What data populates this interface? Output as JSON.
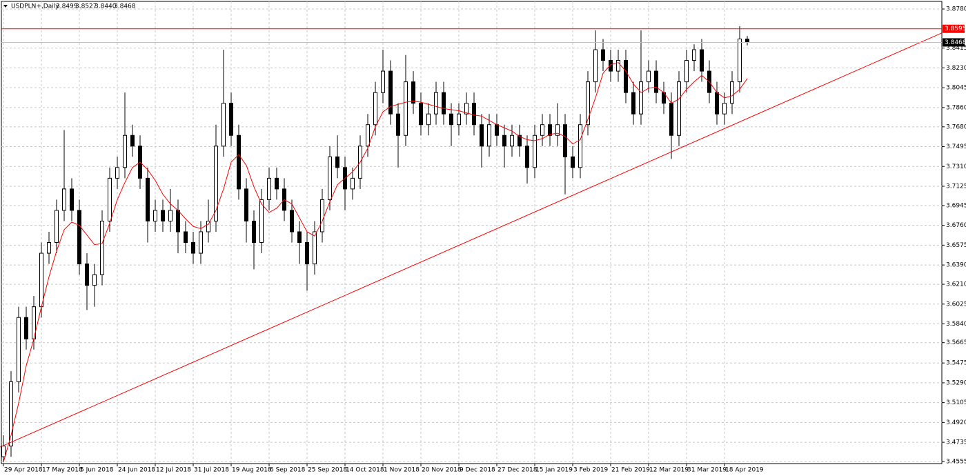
{
  "chart_data": {
    "type": "candlestick",
    "title": "USDPLN+,Daily",
    "last_bar_labels": [
      "3.8499",
      "3.8527",
      "3.8440",
      "3.8468"
    ],
    "up_color": "#ffffff",
    "down_color": "#000000",
    "wick_color": "#000000",
    "grid": true,
    "ylim": [
      3.4536,
      3.8851
    ],
    "yticks": [
      {
        "value": 3.878,
        "label": "3.8780"
      },
      3.8415,
      {
        "value": 3.823,
        "label": "3.8230"
      },
      3.8045,
      {
        "value": 3.786,
        "label": "3.7860"
      },
      {
        "value": 3.768,
        "label": "3.7680"
      },
      3.7495,
      {
        "value": 3.731,
        "label": "3.7310"
      },
      3.7125,
      3.6945,
      {
        "value": 3.676,
        "label": "3.6760"
      },
      3.6575,
      {
        "value": 3.639,
        "label": "3.6390"
      },
      {
        "value": 3.621,
        "label": "3.6210"
      },
      3.6025,
      {
        "value": 3.584,
        "label": "3.5840"
      },
      3.5665,
      3.5475,
      {
        "value": 3.529,
        "label": "3.5290"
      },
      3.5105,
      {
        "value": 3.492,
        "label": "3.4920"
      },
      3.4735,
      3.4555
    ],
    "categories": [
      "29 Apr 2018",
      null,
      null,
      null,
      null,
      "17 May 2018",
      null,
      null,
      null,
      null,
      "5 Jun 2018",
      null,
      null,
      null,
      null,
      "24 Jun 2018",
      null,
      null,
      null,
      null,
      "12 Jul 2018",
      null,
      null,
      null,
      null,
      "31 Jul 2018",
      null,
      null,
      null,
      null,
      "19 Aug 2018",
      null,
      null,
      null,
      null,
      "6 Sep 2018",
      null,
      null,
      null,
      null,
      "25 Sep 2018",
      null,
      null,
      null,
      null,
      "14 Oct 2018",
      null,
      null,
      null,
      null,
      "1 Nov 2018",
      null,
      null,
      null,
      null,
      "20 Nov 2018",
      null,
      null,
      null,
      null,
      "9 Dec 2018",
      null,
      null,
      null,
      null,
      "27 Dec 2018",
      null,
      null,
      null,
      null,
      "15 Jan 2019",
      null,
      null,
      null,
      null,
      "3 Feb 2019",
      null,
      null,
      null,
      null,
      "21 Feb 2019",
      null,
      null,
      null,
      null,
      "12 Mar 2019",
      null,
      null,
      null,
      null,
      "31 Mar 2019",
      null,
      null,
      null,
      null,
      "18 Apr 2019",
      null,
      null,
      null
    ],
    "open": [
      3.46,
      3.47,
      3.53,
      3.59,
      3.57,
      3.6,
      3.65,
      3.66,
      3.69,
      3.71,
      3.69,
      3.64,
      3.62,
      3.63,
      3.68,
      3.72,
      3.73,
      3.76,
      3.75,
      3.72,
      3.68,
      3.69,
      3.68,
      3.69,
      3.67,
      3.66,
      3.65,
      3.67,
      3.68,
      3.75,
      3.79,
      3.76,
      3.71,
      3.68,
      3.66,
      3.7,
      3.72,
      3.71,
      3.69,
      3.67,
      3.66,
      3.64,
      3.67,
      3.7,
      3.74,
      3.73,
      3.71,
      3.72,
      3.75,
      3.77,
      3.8,
      3.82,
      3.78,
      3.76,
      3.81,
      3.79,
      3.77,
      3.78,
      3.8,
      3.78,
      3.77,
      3.78,
      3.79,
      3.77,
      3.75,
      3.77,
      3.76,
      3.75,
      3.76,
      3.75,
      3.73,
      3.76,
      3.77,
      3.76,
      3.77,
      3.74,
      3.73,
      3.77,
      3.81,
      3.84,
      3.83,
      3.82,
      3.83,
      3.8,
      3.78,
      3.81,
      3.82,
      3.8,
      3.79,
      3.76,
      3.81,
      3.83,
      3.84,
      3.82,
      3.8,
      3.78,
      3.79,
      3.81,
      3.8499
    ],
    "high": [
      3.48,
      3.54,
      3.6,
      3.6,
      3.61,
      3.66,
      3.67,
      3.7,
      3.765,
      3.72,
      3.7,
      3.65,
      3.64,
      3.69,
      3.73,
      3.74,
      3.8,
      3.77,
      3.76,
      3.73,
      3.7,
      3.7,
      3.71,
      3.7,
      3.68,
      3.67,
      3.68,
      3.7,
      3.77,
      3.84,
      3.8,
      3.77,
      3.72,
      3.69,
      3.71,
      3.73,
      3.73,
      3.72,
      3.7,
      3.68,
      3.67,
      3.68,
      3.71,
      3.75,
      3.76,
      3.74,
      3.73,
      3.76,
      3.78,
      3.81,
      3.84,
      3.83,
      3.79,
      3.835,
      3.82,
      3.8,
      3.79,
      3.81,
      3.81,
      3.79,
      3.79,
      3.8,
      3.8,
      3.78,
      3.78,
      3.78,
      3.77,
      3.77,
      3.77,
      3.76,
      3.77,
      3.78,
      3.78,
      3.79,
      3.78,
      3.75,
      3.78,
      3.82,
      3.858,
      3.85,
      3.84,
      3.84,
      3.84,
      3.81,
      3.858,
      3.83,
      3.83,
      3.81,
      3.8,
      3.82,
      3.84,
      3.845,
      3.85,
      3.83,
      3.81,
      3.8,
      3.82,
      3.862,
      3.8527
    ],
    "low": [
      3.455,
      3.46,
      3.52,
      3.56,
      3.56,
      3.59,
      3.64,
      3.65,
      3.68,
      3.68,
      3.63,
      3.597,
      3.6,
      3.62,
      3.67,
      3.71,
      3.72,
      3.74,
      3.71,
      3.66,
      3.67,
      3.67,
      3.67,
      3.65,
      3.65,
      3.64,
      3.64,
      3.66,
      3.67,
      3.74,
      3.75,
      3.7,
      3.66,
      3.635,
      3.65,
      3.69,
      3.7,
      3.68,
      3.66,
      3.64,
      3.615,
      3.63,
      3.66,
      3.69,
      3.72,
      3.69,
      3.7,
      3.71,
      3.74,
      3.76,
      3.79,
      3.77,
      3.73,
      3.75,
      3.78,
      3.76,
      3.76,
      3.77,
      3.77,
      3.75,
      3.76,
      3.77,
      3.76,
      3.73,
      3.74,
      3.75,
      3.73,
      3.74,
      3.74,
      3.715,
      3.72,
      3.75,
      3.75,
      3.75,
      3.705,
      3.72,
      3.72,
      3.76,
      3.8,
      3.82,
      3.81,
      3.81,
      3.79,
      3.77,
      3.77,
      3.8,
      3.79,
      3.78,
      3.738,
      3.75,
      3.8,
      3.82,
      3.81,
      3.79,
      3.77,
      3.77,
      3.78,
      3.8,
      3.844
    ],
    "close": [
      3.47,
      3.53,
      3.59,
      3.57,
      3.6,
      3.65,
      3.66,
      3.69,
      3.71,
      3.69,
      3.64,
      3.62,
      3.63,
      3.68,
      3.72,
      3.73,
      3.76,
      3.75,
      3.72,
      3.68,
      3.69,
      3.68,
      3.69,
      3.67,
      3.66,
      3.65,
      3.67,
      3.68,
      3.75,
      3.79,
      3.76,
      3.71,
      3.68,
      3.66,
      3.7,
      3.72,
      3.71,
      3.69,
      3.67,
      3.66,
      3.64,
      3.67,
      3.7,
      3.74,
      3.73,
      3.71,
      3.72,
      3.75,
      3.77,
      3.8,
      3.82,
      3.78,
      3.76,
      3.81,
      3.79,
      3.77,
      3.78,
      3.8,
      3.78,
      3.77,
      3.78,
      3.79,
      3.77,
      3.75,
      3.77,
      3.76,
      3.75,
      3.76,
      3.75,
      3.73,
      3.76,
      3.77,
      3.76,
      3.77,
      3.74,
      3.73,
      3.77,
      3.81,
      3.84,
      3.83,
      3.82,
      3.83,
      3.8,
      3.78,
      3.81,
      3.82,
      3.8,
      3.79,
      3.76,
      3.81,
      3.83,
      3.84,
      3.82,
      3.8,
      3.78,
      3.79,
      3.81,
      3.85,
      3.8468
    ],
    "ma": {
      "color": "#ff0000",
      "values": [
        3.455,
        3.48,
        3.51,
        3.545,
        3.57,
        3.6,
        3.628,
        3.652,
        3.672,
        3.679,
        3.676,
        3.667,
        3.658,
        3.659,
        3.678,
        3.7,
        3.716,
        3.73,
        3.735,
        3.728,
        3.718,
        3.705,
        3.696,
        3.69,
        3.682,
        3.675,
        3.673,
        3.677,
        3.69,
        3.71,
        3.735,
        3.742,
        3.732,
        3.712,
        3.696,
        3.688,
        3.692,
        3.7,
        3.696,
        3.683,
        3.67,
        3.666,
        3.68,
        3.698,
        3.714,
        3.72,
        3.726,
        3.735,
        3.748,
        3.768,
        3.782,
        3.787,
        3.789,
        3.791,
        3.792,
        3.791,
        3.789,
        3.787,
        3.785,
        3.784,
        3.783,
        3.781,
        3.779,
        3.778,
        3.774,
        3.77,
        3.767,
        3.764,
        3.759,
        3.756,
        3.755,
        3.757,
        3.761,
        3.762,
        3.759,
        3.752,
        3.756,
        3.775,
        3.795,
        3.818,
        3.826,
        3.828,
        3.82,
        3.808,
        3.8,
        3.804,
        3.805,
        3.8,
        3.79,
        3.794,
        3.803,
        3.81,
        3.816,
        3.81,
        3.8,
        3.795,
        3.797,
        3.803,
        3.813
      ]
    },
    "trendline": {
      "color": "#ff0000",
      "x": [
        -0.45,
        123.6
      ],
      "y": [
        3.469,
        3.8555
      ]
    },
    "hline": {
      "value": 3.8595,
      "color": "#ff0000"
    },
    "price_line_color": "#c0c0c0"
  }
}
